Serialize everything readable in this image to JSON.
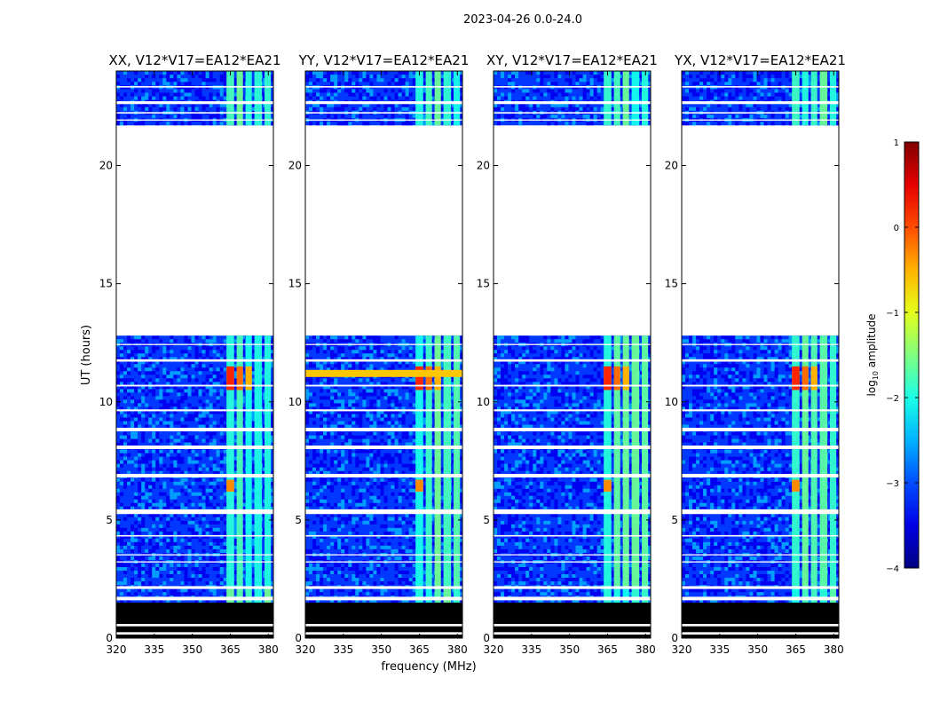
{
  "figure": {
    "suptitle": "2023-04-26 0.0-24.0"
  },
  "chart_data": {
    "type": "heatmap",
    "suptitle": "2023-04-26 0.0-24.0",
    "xlabel": "frequency (MHz)",
    "ylabel": "UT (hours)",
    "xlim": [
      320,
      382
    ],
    "ylim": [
      0,
      24
    ],
    "xticks": [
      "320",
      "335",
      "350",
      "365",
      "380"
    ],
    "yticks": [
      "0",
      "5",
      "10",
      "15",
      "20"
    ],
    "colorbar": {
      "label": "log$_{10}$ amplitude",
      "label_main": "log",
      "label_sub": "10",
      "label_rest": " amplitude",
      "range": [
        -4,
        1
      ],
      "ticks": [
        "−4",
        "−3",
        "−2",
        "−1",
        "0",
        "1"
      ],
      "colormap": "jet"
    },
    "panels": [
      {
        "title": "XX, V12*V17=EA12*EA21",
        "polarization": "XX",
        "rfi_peak_hour": 11.0
      },
      {
        "title": "YY, V12*V17=EA12*EA21",
        "polarization": "YY",
        "rfi_peak_hour": 11.0
      },
      {
        "title": "XY, V12*V17=EA12*EA21",
        "polarization": "XY",
        "rfi_peak_hour": 11.0
      },
      {
        "title": "YX, V12*V17=EA12*EA21",
        "polarization": "YX",
        "rfi_peak_hour": 11.0
      }
    ],
    "data_blocks_hours": [
      [
        0.0,
        2.1
      ],
      [
        2.1,
        12.8
      ],
      [
        21.7,
        24.0
      ]
    ],
    "masked_block_hours": [
      0.0,
      1.5
    ],
    "empty_block_hours": [
      12.8,
      21.7
    ],
    "rfi_bands_mhz": [
      [
        363.5,
        366.5
      ],
      [
        367.5,
        370.0
      ],
      [
        371.0,
        373.5
      ],
      [
        374.5,
        377.5
      ],
      [
        378.5,
        381.0
      ]
    ],
    "background_level": -3.1,
    "band_level": -1.8,
    "hot_level": 0.2
  }
}
